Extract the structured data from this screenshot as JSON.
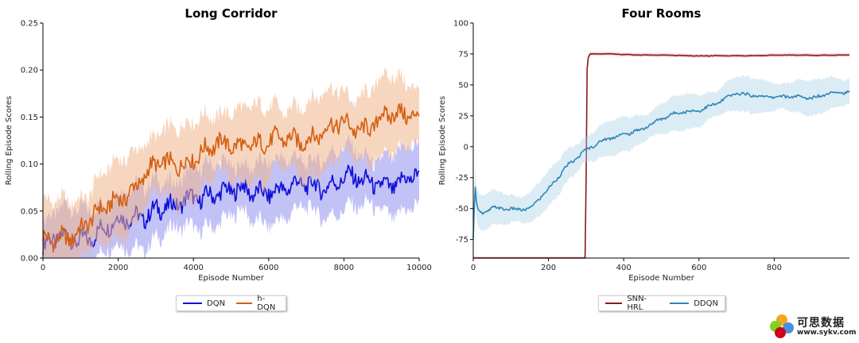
{
  "chart_data": [
    {
      "type": "line",
      "title": "Long Corridor",
      "xlabel": "Episode Number",
      "ylabel": "Rolling Episode Scores",
      "xlim": [
        0,
        10000
      ],
      "ylim": [
        0,
        0.25
      ],
      "xticks": [
        0,
        2000,
        4000,
        6000,
        8000,
        10000
      ],
      "yticks": [
        0.0,
        0.05,
        0.1,
        0.15,
        0.2,
        0.25
      ],
      "ytick_labels": [
        "0.00",
        "0.05",
        "0.10",
        "0.15",
        "0.20",
        "0.25"
      ],
      "grid": false,
      "legend": "bottom-center",
      "series": [
        {
          "name": "DQN",
          "color": "#1010d8",
          "band_color": "#8f8ff0",
          "x": [
            0,
            500,
            1000,
            1500,
            2000,
            2500,
            3000,
            3500,
            4000,
            4500,
            5000,
            5500,
            6000,
            6500,
            7000,
            7500,
            8000,
            8500,
            9000,
            9500,
            10000
          ],
          "values": [
            0.012,
            0.018,
            0.022,
            0.03,
            0.035,
            0.045,
            0.055,
            0.05,
            0.065,
            0.072,
            0.068,
            0.07,
            0.075,
            0.072,
            0.076,
            0.08,
            0.085,
            0.078,
            0.082,
            0.08,
            0.085
          ],
          "band": 0.028
        },
        {
          "name": "h-DQN",
          "color": "#d45f10",
          "band_color": "#f0b48c",
          "x": [
            0,
            500,
            1000,
            1500,
            2000,
            2500,
            3000,
            3500,
            4000,
            4500,
            5000,
            5500,
            6000,
            6500,
            7000,
            7500,
            8000,
            8500,
            9000,
            9500,
            10000
          ],
          "values": [
            0.015,
            0.025,
            0.03,
            0.045,
            0.065,
            0.08,
            0.095,
            0.1,
            0.11,
            0.115,
            0.12,
            0.125,
            0.12,
            0.125,
            0.13,
            0.135,
            0.14,
            0.14,
            0.15,
            0.148,
            0.155
          ],
          "band": 0.035
        }
      ]
    },
    {
      "type": "line",
      "title": "Four Rooms",
      "xlabel": "Episode Number",
      "ylabel": "Rolling Episode Scores",
      "xlim": [
        0,
        1000
      ],
      "ylim": [
        -90,
        100
      ],
      "xticks": [
        0,
        200,
        400,
        600,
        800
      ],
      "yticks": [
        -75,
        -50,
        -25,
        0,
        25,
        50,
        75,
        100
      ],
      "grid": false,
      "legend": "bottom-center",
      "series": [
        {
          "name": "SNN-HRL",
          "color": "#8b1a1a",
          "band_color": "#e8a0a0",
          "x": [
            0,
            100,
            200,
            298,
            303,
            310,
            350,
            400,
            500,
            600,
            700,
            800,
            900,
            1000
          ],
          "values": [
            -90,
            -90,
            -90,
            -90,
            70,
            75,
            75,
            74.5,
            74,
            73.5,
            73.5,
            74,
            74,
            74
          ],
          "band": 1.5
        },
        {
          "name": "DDQN",
          "color": "#2e86ba",
          "band_color": "#a7cfe6",
          "x": [
            0,
            5,
            10,
            25,
            50,
            100,
            150,
            200,
            250,
            300,
            350,
            400,
            450,
            500,
            550,
            600,
            650,
            700,
            750,
            800,
            850,
            900,
            950,
            1000
          ],
          "values": [
            -75,
            -30,
            -50,
            -55,
            -50,
            -50,
            -50,
            -35,
            -15,
            -2,
            5,
            10,
            15,
            22,
            28,
            30,
            35,
            43,
            42,
            40,
            40,
            40,
            44,
            43
          ],
          "band": 12
        }
      ]
    }
  ],
  "watermark": {
    "text": "可思数据",
    "url": "www.sykv.com",
    "colors": [
      "#f5a623",
      "#7ed321",
      "#4a90e2",
      "#d0021b"
    ]
  }
}
